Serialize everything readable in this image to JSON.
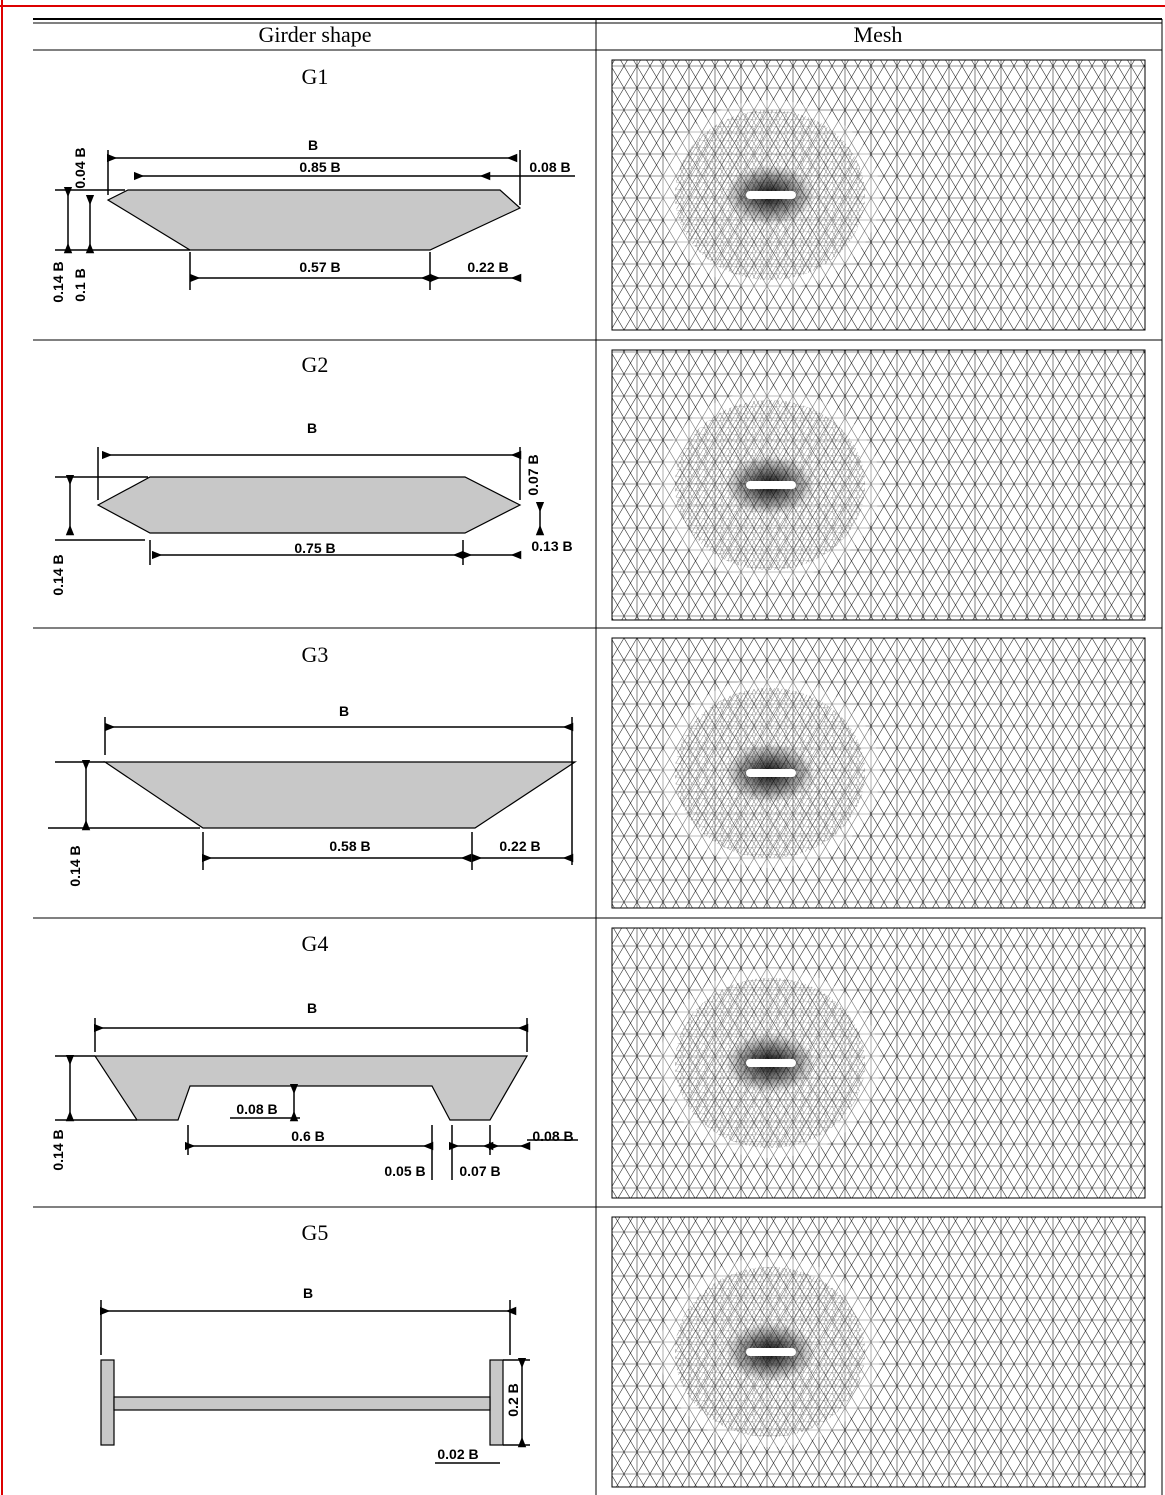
{
  "table": {
    "header": [
      "Girder shape",
      "Mesh"
    ],
    "rows": [
      {
        "label": "G1",
        "dimensions": [
          "B",
          "0.85 B",
          "0.08 B",
          "0.04 B",
          "0.14 B",
          "0.1 B",
          "0.57 B",
          "0.22 B"
        ]
      },
      {
        "label": "G2",
        "dimensions": [
          "B",
          "0.07 B",
          "0.14 B",
          "0.75 B",
          "0.13 B"
        ]
      },
      {
        "label": "G3",
        "dimensions": [
          "B",
          "0.14 B",
          "0.58 B",
          "0.22 B"
        ]
      },
      {
        "label": "G4",
        "dimensions": [
          "B",
          "0.14 B",
          "0.08 B",
          "0.6 B",
          "0.08 B",
          "0.05 B",
          "0.07 B"
        ]
      },
      {
        "label": "G5",
        "dimensions": [
          "B",
          "0.2 B",
          "0.02 B"
        ]
      }
    ]
  }
}
